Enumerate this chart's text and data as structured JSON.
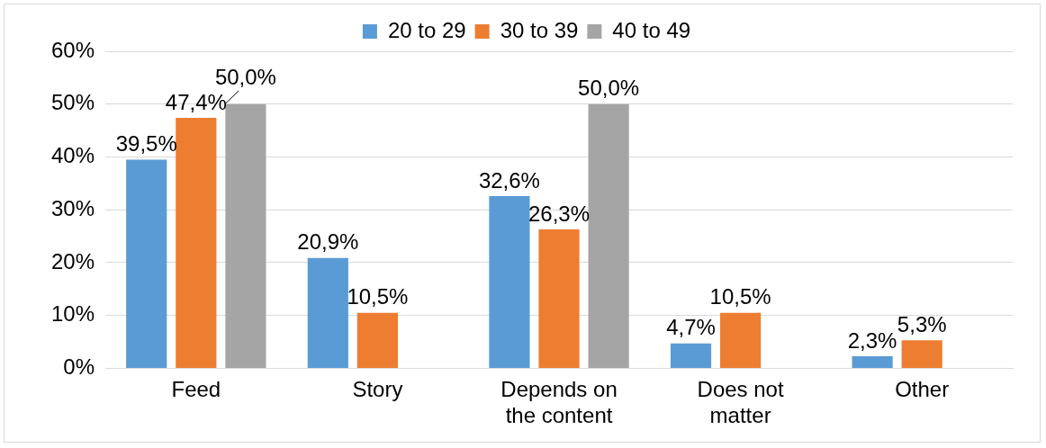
{
  "chart_data": {
    "type": "bar",
    "categories": [
      "Feed",
      "Story",
      "Depends on the content",
      "Does not matter",
      "Other"
    ],
    "series": [
      {
        "name": "20 to 29",
        "color": "#5b9bd5",
        "values": [
          39.5,
          20.9,
          32.6,
          4.7,
          2.3
        ],
        "value_labels": [
          "39,5%",
          "20,9%",
          "32,6%",
          "4,7%",
          "2,3%"
        ]
      },
      {
        "name": "30 to 39",
        "color": "#ed7d31",
        "values": [
          47.4,
          10.5,
          26.3,
          10.5,
          5.3
        ],
        "value_labels": [
          "47,4%",
          "10,5%",
          "26,3%",
          "10,5%",
          "5,3%"
        ]
      },
      {
        "name": "40 to 49",
        "color": "#a5a5a5",
        "values": [
          50.0,
          null,
          50.0,
          null,
          null
        ],
        "value_labels": [
          "50,0%",
          null,
          "50,0%",
          null,
          null
        ]
      }
    ],
    "ylim": [
      0,
      60
    ],
    "yticks": [
      {
        "value": 0,
        "label": "0%"
      },
      {
        "value": 10,
        "label": "10%"
      },
      {
        "value": 20,
        "label": "20%"
      },
      {
        "value": 30,
        "label": "30%"
      },
      {
        "value": 40,
        "label": "40%"
      },
      {
        "value": 50,
        "label": "50%"
      },
      {
        "value": 60,
        "label": "60%"
      }
    ],
    "grid": "y",
    "legend": "top"
  }
}
